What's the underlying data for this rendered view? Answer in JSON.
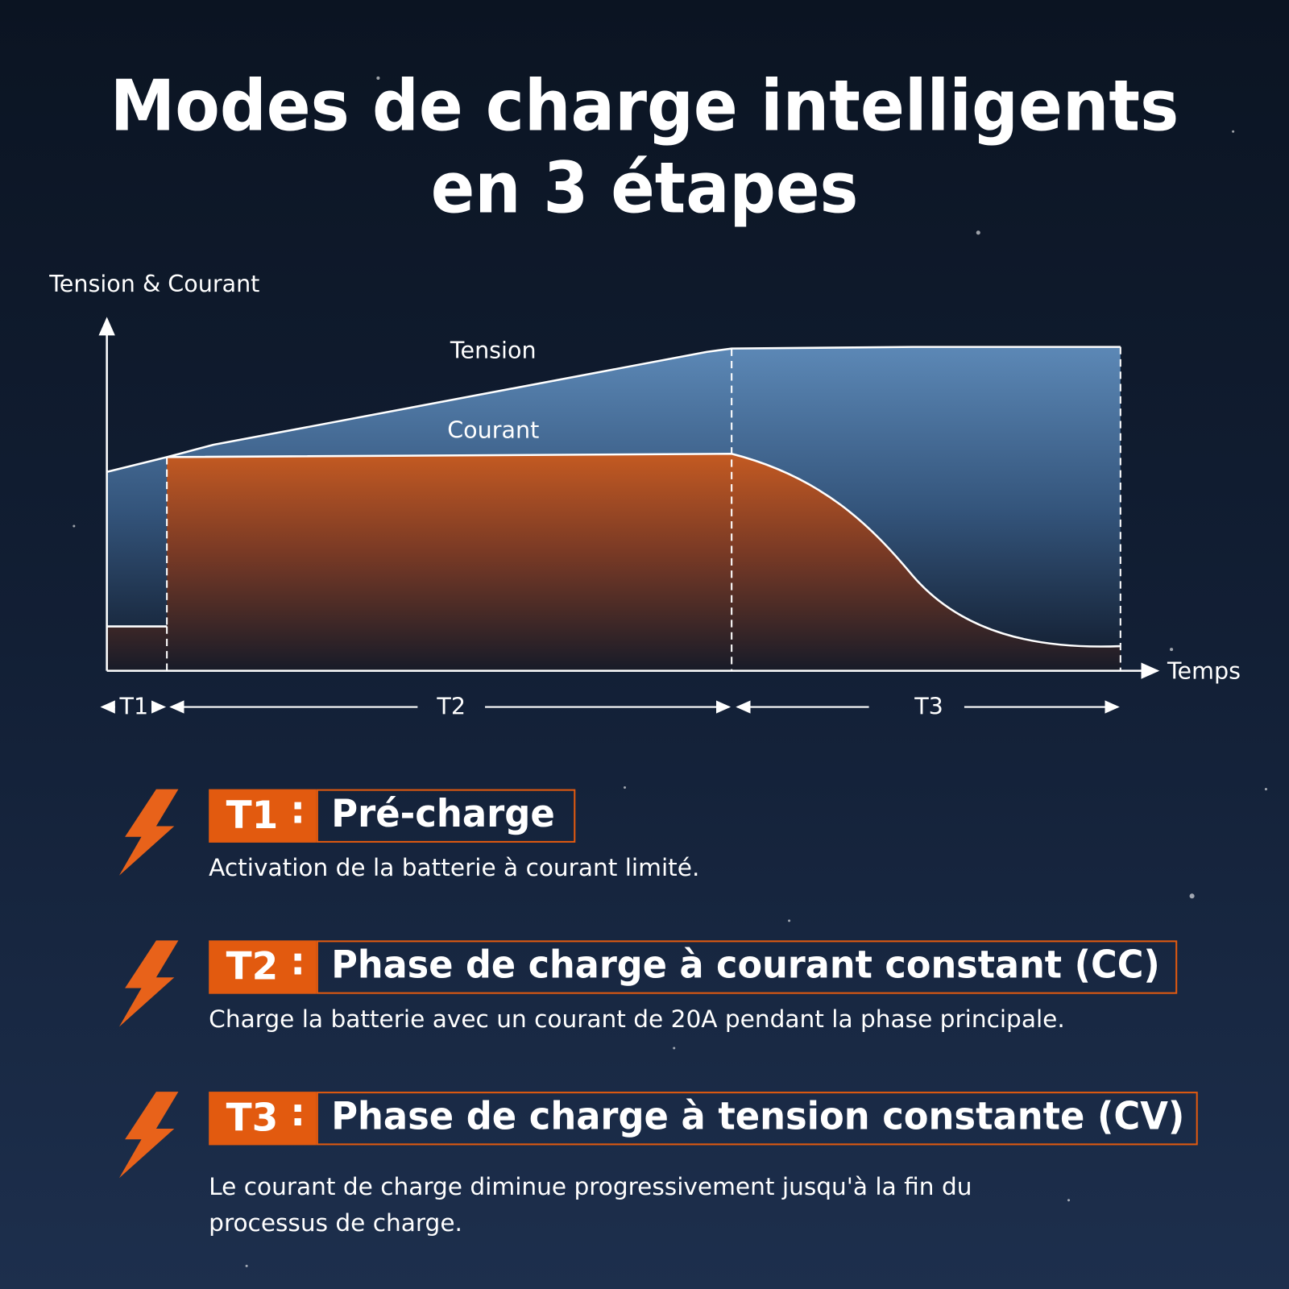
{
  "title": {
    "lines": [
      "Modes de charge intelligents",
      "en 3 étapes"
    ]
  },
  "diagram": {
    "y_axis_label": "Tension & Courant",
    "x_axis_label": "Temps",
    "curves": [
      "Tension",
      "Courant"
    ],
    "phases": [
      "T1",
      "T2",
      "T3"
    ]
  },
  "steps": [
    {
      "code": "T1",
      "separator": ":",
      "name": "Pré-charge",
      "description": [
        "Activation de la batterie à courant limité."
      ]
    },
    {
      "code": "T2",
      "separator": ":",
      "name": "Phase de charge à courant constant (CC)",
      "description": [
        "Charge la batterie avec un courant de 20A pendant la phase principale."
      ]
    },
    {
      "code": "T3",
      "separator": ":",
      "name": "Phase de charge à tension constante (CV)",
      "description": [
        "Le courant de charge diminue progressivement jusqu'à la fin du",
        "processus de charge."
      ]
    }
  ]
}
